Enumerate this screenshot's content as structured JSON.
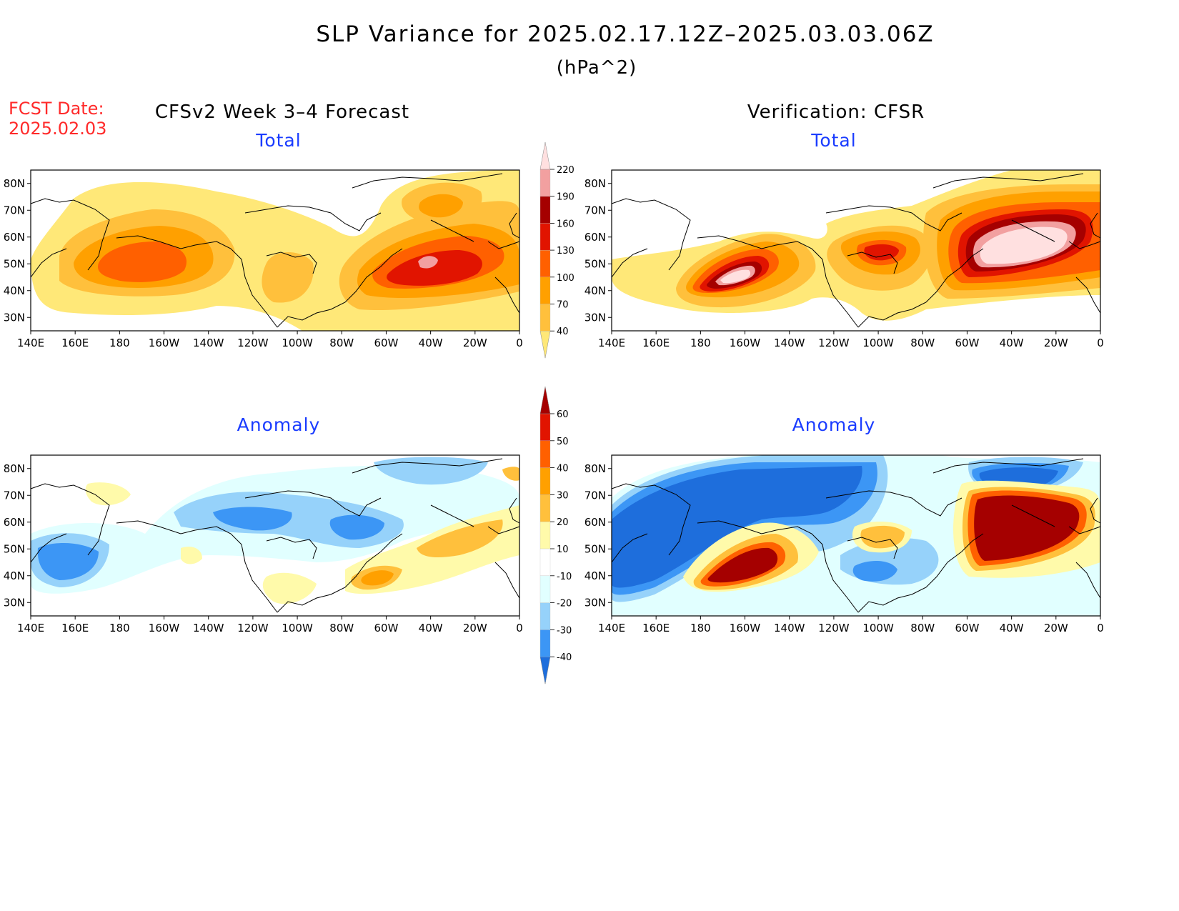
{
  "title": "SLP Variance for 2025.02.17.12Z–2025.03.03.06Z",
  "units": "(hPa^2)",
  "fcst_date": {
    "label": "FCST Date:",
    "value": "2025.02.03"
  },
  "columns": {
    "left": "CFSv2 Week 3–4 Forecast",
    "right": "Verification: CFSR"
  },
  "panels": {
    "total": "Total",
    "anomaly": "Anomaly"
  },
  "lat_labels": [
    "80N",
    "70N",
    "60N",
    "50N",
    "40N",
    "30N"
  ],
  "lat_values": [
    80,
    70,
    60,
    50,
    40,
    30
  ],
  "lon_labels": [
    "140E",
    "160E",
    "180",
    "160W",
    "140W",
    "120W",
    "100W",
    "80W",
    "60W",
    "40W",
    "20W",
    "0"
  ],
  "total_colorbar": {
    "labels": [
      "40",
      "70",
      "100",
      "130",
      "160",
      "190",
      "220"
    ],
    "colors": [
      "#ffe878",
      "#ffc03c",
      "#ffa000",
      "#ff6000",
      "#e11400",
      "#a50000",
      "#f2a0a0",
      "#ffe0e0"
    ]
  },
  "anomaly_colorbar": {
    "labels": [
      "-40",
      "-30",
      "-20",
      "-10",
      "10",
      "20",
      "30",
      "40",
      "50",
      "60"
    ],
    "colors": [
      "#1e6edc",
      "#3c96f5",
      "#96d2fa",
      "#e1ffff",
      "#ffffff",
      "#fffaaa",
      "#ffc03c",
      "#ffa000",
      "#ff6000",
      "#e11400",
      "#a50000"
    ]
  },
  "palette": {
    "t1": "#ffe878",
    "t2": "#ffc03c",
    "t3": "#ffa000",
    "t4": "#ff6000",
    "t5": "#e11400",
    "t6": "#a50000",
    "t7": "#f2a0a0",
    "t8": "#ffe0e0",
    "n1": "#e1ffff",
    "n2": "#96d2fa",
    "n3": "#3c96f5",
    "n4": "#1e6edc",
    "p1": "#fffaaa",
    "p2": "#ffc03c",
    "p3": "#ffa000",
    "p4": "#ff6000",
    "p5": "#e11400",
    "p6": "#a50000"
  }
}
